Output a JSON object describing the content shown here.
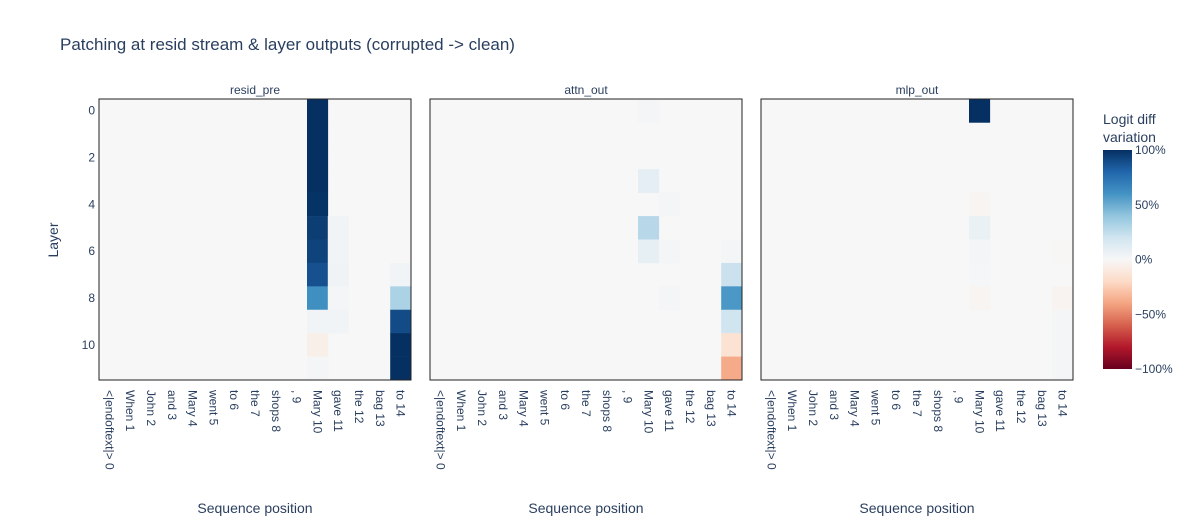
{
  "chart_data": {
    "type": "heatmap",
    "title": "Patching at resid stream & layer outputs (corrupted -> clean)",
    "ylabel": "Layer",
    "xlabel": "Sequence position",
    "y_ticks": [
      0,
      2,
      4,
      6,
      8,
      10
    ],
    "x_categories": [
      "<|endoftext|> 0",
      "When 1",
      "John 2",
      "and 3",
      "Mary 4",
      "went 5",
      "to 6",
      "the 7",
      "shops 8",
      ", 9",
      "Mary 10",
      "gave 11",
      "the 12",
      "bag 13",
      "to 14"
    ],
    "colorbar": {
      "title_lines": [
        "Logit diff",
        "variation"
      ],
      "ticks": [
        "100%",
        "50%",
        "0%",
        "−50%",
        "−100%"
      ],
      "range": [
        -1,
        1
      ],
      "colorscale": "RdBu"
    },
    "panels": [
      {
        "name": "resid_pre",
        "cells": [
          {
            "layer": 0,
            "pos": 10,
            "value": 1.0
          },
          {
            "layer": 1,
            "pos": 10,
            "value": 1.0
          },
          {
            "layer": 2,
            "pos": 10,
            "value": 1.0
          },
          {
            "layer": 3,
            "pos": 10,
            "value": 1.0
          },
          {
            "layer": 4,
            "pos": 10,
            "value": 0.99
          },
          {
            "layer": 5,
            "pos": 10,
            "value": 0.95
          },
          {
            "layer": 6,
            "pos": 10,
            "value": 0.93
          },
          {
            "layer": 7,
            "pos": 10,
            "value": 0.88
          },
          {
            "layer": 8,
            "pos": 10,
            "value": 0.62
          },
          {
            "layer": 9,
            "pos": 10,
            "value": 0.03
          },
          {
            "layer": 10,
            "pos": 10,
            "value": -0.06
          },
          {
            "layer": 11,
            "pos": 10,
            "value": 0.02
          },
          {
            "layer": 5,
            "pos": 11,
            "value": 0.03
          },
          {
            "layer": 6,
            "pos": 11,
            "value": 0.03
          },
          {
            "layer": 7,
            "pos": 11,
            "value": 0.04
          },
          {
            "layer": 8,
            "pos": 11,
            "value": 0.02
          },
          {
            "layer": 9,
            "pos": 11,
            "value": 0.03
          },
          {
            "layer": 7,
            "pos": 14,
            "value": 0.03
          },
          {
            "layer": 8,
            "pos": 14,
            "value": 0.32
          },
          {
            "layer": 9,
            "pos": 14,
            "value": 0.9
          },
          {
            "layer": 10,
            "pos": 14,
            "value": 1.0
          },
          {
            "layer": 11,
            "pos": 14,
            "value": 1.0
          }
        ]
      },
      {
        "name": "attn_out",
        "cells": [
          {
            "layer": 0,
            "pos": 10,
            "value": 0.02
          },
          {
            "layer": 3,
            "pos": 10,
            "value": 0.1
          },
          {
            "layer": 4,
            "pos": 11,
            "value": 0.02
          },
          {
            "layer": 5,
            "pos": 10,
            "value": 0.28
          },
          {
            "layer": 6,
            "pos": 10,
            "value": 0.09
          },
          {
            "layer": 6,
            "pos": 11,
            "value": 0.02
          },
          {
            "layer": 6,
            "pos": 14,
            "value": 0.02
          },
          {
            "layer": 7,
            "pos": 14,
            "value": 0.22
          },
          {
            "layer": 8,
            "pos": 14,
            "value": 0.58
          },
          {
            "layer": 8,
            "pos": 11,
            "value": 0.02
          },
          {
            "layer": 9,
            "pos": 14,
            "value": 0.2
          },
          {
            "layer": 10,
            "pos": 14,
            "value": -0.15
          },
          {
            "layer": 11,
            "pos": 14,
            "value": -0.38
          }
        ]
      },
      {
        "name": "mlp_out",
        "cells": [
          {
            "layer": 0,
            "pos": 10,
            "value": 1.0
          },
          {
            "layer": 4,
            "pos": 10,
            "value": -0.02
          },
          {
            "layer": 5,
            "pos": 10,
            "value": 0.07
          },
          {
            "layer": 6,
            "pos": 10,
            "value": 0.02
          },
          {
            "layer": 7,
            "pos": 10,
            "value": 0.01
          },
          {
            "layer": 8,
            "pos": 10,
            "value": -0.02
          },
          {
            "layer": 6,
            "pos": 14,
            "value": -0.01
          },
          {
            "layer": 8,
            "pos": 14,
            "value": -0.03
          },
          {
            "layer": 9,
            "pos": 14,
            "value": 0.02
          },
          {
            "layer": 10,
            "pos": 14,
            "value": 0.02
          },
          {
            "layer": 11,
            "pos": 14,
            "value": 0.02
          }
        ]
      }
    ],
    "n_layers": 12,
    "n_positions": 15
  }
}
